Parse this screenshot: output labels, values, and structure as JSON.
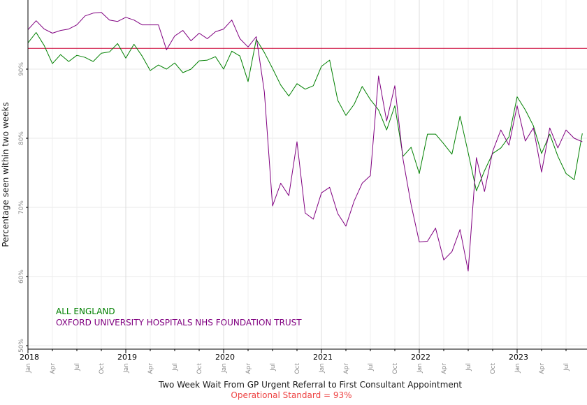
{
  "chart_data": {
    "type": "line",
    "title": "",
    "xlabel": "Two Week Wait From GP Urgent Referral to First Consultant Appointment",
    "caption": "Operational Standard = 93%",
    "ylabel": "Percentage seen within two weeks",
    "ylim": [
      49.5,
      100
    ],
    "yticks": [
      50,
      60,
      70,
      80,
      90
    ],
    "ytick_labels": [
      "50%",
      "60%",
      "70%",
      "80%",
      "90%"
    ],
    "start_month": "2018-01",
    "end_month": "2023-10",
    "year_labels": [
      "2018",
      "2019",
      "2020",
      "2021",
      "2022",
      "2023"
    ],
    "month_labels": [
      "Jan",
      "Apr",
      "Jul",
      "Oct"
    ],
    "grid": true,
    "legend_position": "bottom-left inside plot",
    "standard": {
      "value": 93,
      "color": "#cc0033"
    },
    "series": [
      {
        "name": "ALL ENGLAND",
        "color": "#008000",
        "values": [
          93.8,
          95.3,
          93.4,
          90.8,
          92.1,
          91.1,
          92.0,
          91.7,
          91.1,
          92.3,
          92.5,
          93.7,
          91.6,
          93.6,
          91.9,
          89.8,
          90.6,
          90.0,
          90.9,
          89.5,
          90.0,
          91.2,
          91.3,
          91.8,
          90.0,
          92.6,
          91.9,
          88.2,
          94.3,
          92.4,
          90.1,
          87.7,
          86.1,
          87.9,
          87.1,
          87.6,
          90.4,
          91.3,
          85.5,
          83.3,
          84.9,
          87.5,
          85.6,
          84.1,
          81.2,
          84.7,
          77.4,
          78.7,
          74.9,
          80.6,
          80.6,
          79.2,
          77.7,
          83.2,
          77.9,
          72.4,
          75.3,
          77.8,
          78.6,
          80.2,
          86.0,
          84.1,
          81.8,
          77.8,
          80.6,
          77.4,
          74.9,
          74.0,
          80.7
        ]
      },
      {
        "name": "OXFORD UNIVERSITY HOSPITALS NHS FOUNDATION TRUST",
        "color": "#800080",
        "values": [
          95.7,
          97.0,
          95.8,
          95.2,
          95.6,
          95.8,
          96.4,
          97.7,
          98.1,
          98.2,
          97.1,
          96.9,
          97.5,
          97.1,
          96.4,
          96.4,
          96.4,
          92.8,
          94.8,
          95.6,
          94.1,
          95.2,
          94.4,
          95.4,
          95.8,
          97.1,
          94.4,
          93.2,
          94.7,
          86.7,
          70.2,
          73.5,
          71.7,
          79.5,
          69.2,
          68.3,
          72.1,
          72.9,
          69.1,
          67.3,
          70.9,
          73.5,
          74.6,
          89.0,
          82.5,
          87.6,
          77.0,
          70.4,
          65.0,
          65.1,
          67.0,
          62.4,
          63.6,
          66.8,
          60.8,
          77.2,
          72.3,
          78.1,
          81.2,
          79.0,
          84.7,
          79.6,
          81.5,
          75.1,
          81.5,
          78.6,
          81.2,
          80.0,
          79.5
        ]
      }
    ]
  }
}
